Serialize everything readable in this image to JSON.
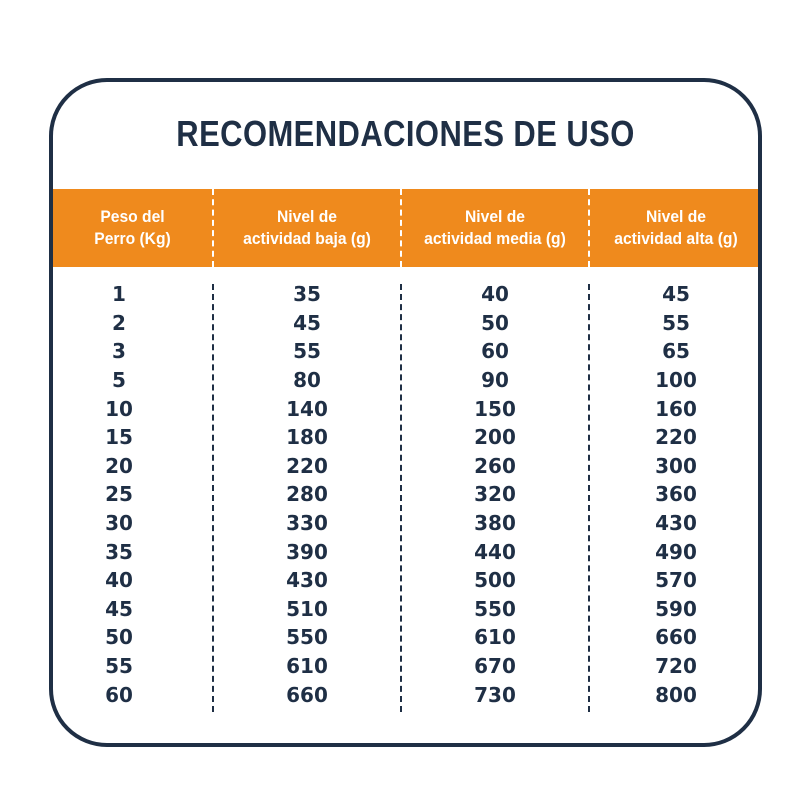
{
  "title": "RECOMENDACIONES DE USO",
  "columns": [
    "Peso del\nPerro (Kg)",
    "Nivel de\nactividad baja (g)",
    "Nivel de\nactividad media (g)",
    "Nivel de\nactividad alta (g)"
  ],
  "rows": [
    [
      "1",
      "35",
      "40",
      "45"
    ],
    [
      "2",
      "45",
      "50",
      "55"
    ],
    [
      "3",
      "55",
      "60",
      "65"
    ],
    [
      "5",
      "80",
      "90",
      "100"
    ],
    [
      "10",
      "140",
      "150",
      "160"
    ],
    [
      "15",
      "180",
      "200",
      "220"
    ],
    [
      "20",
      "220",
      "260",
      "300"
    ],
    [
      "25",
      "280",
      "320",
      "360"
    ],
    [
      "30",
      "330",
      "380",
      "430"
    ],
    [
      "35",
      "390",
      "440",
      "490"
    ],
    [
      "40",
      "430",
      "500",
      "570"
    ],
    [
      "45",
      "510",
      "550",
      "590"
    ],
    [
      "50",
      "550",
      "610",
      "660"
    ],
    [
      "55",
      "610",
      "670",
      "720"
    ],
    [
      "60",
      "660",
      "730",
      "800"
    ]
  ],
  "colors": {
    "header_background": "#ef8a1d",
    "text_navy": "#1f2f45",
    "header_text": "#ffffff"
  }
}
